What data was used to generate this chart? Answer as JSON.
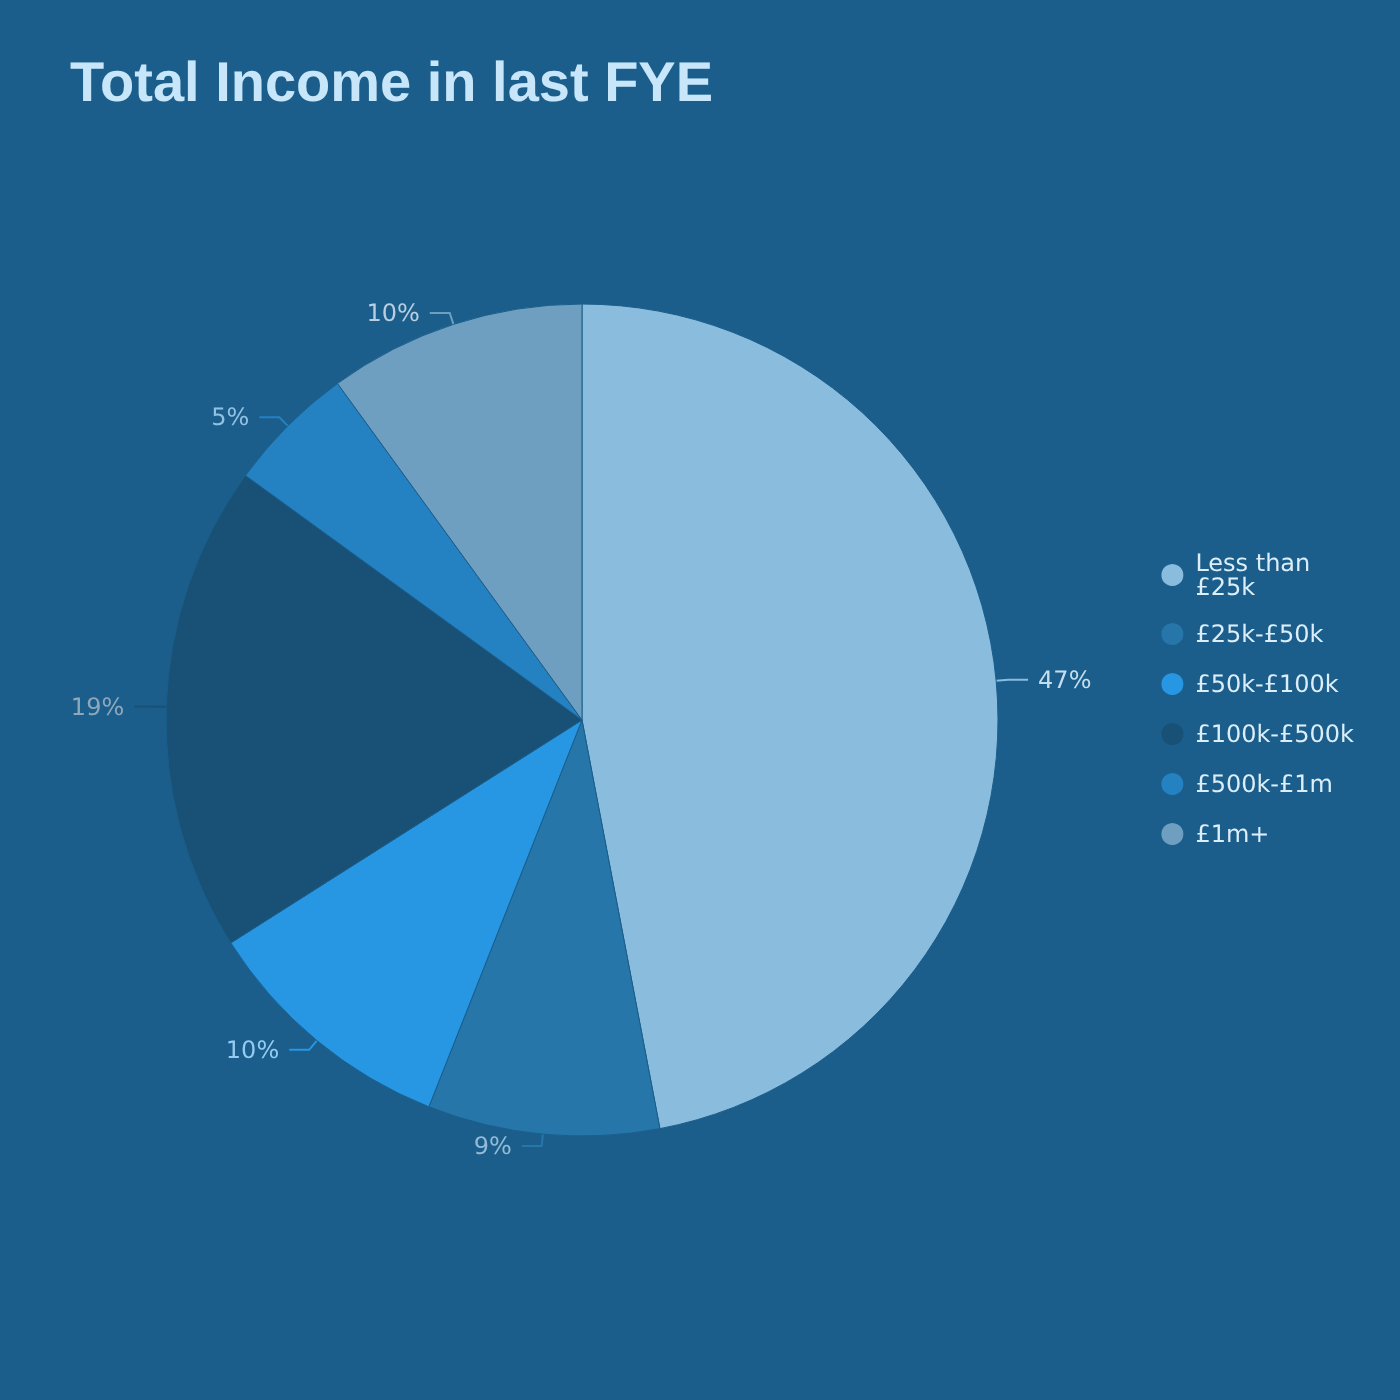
{
  "chart_data": {
    "type": "pie",
    "title": "Total Income in last FYE",
    "categories": [
      "Less than\n£25k",
      "£25k-£50k",
      "£50k-£100k",
      "£100k-£500k",
      "£500k-£1m",
      "£1m+"
    ],
    "values": [
      47,
      9,
      10,
      19,
      5,
      10
    ],
    "value_labels": [
      "47%",
      "9%",
      "10%",
      "19%",
      "5%",
      "10%"
    ],
    "colors": [
      "#89bcdd",
      "#2676aa",
      "#2796e3",
      "#185175",
      "#2481c2",
      "#6f9fc0"
    ],
    "legend": "right"
  }
}
